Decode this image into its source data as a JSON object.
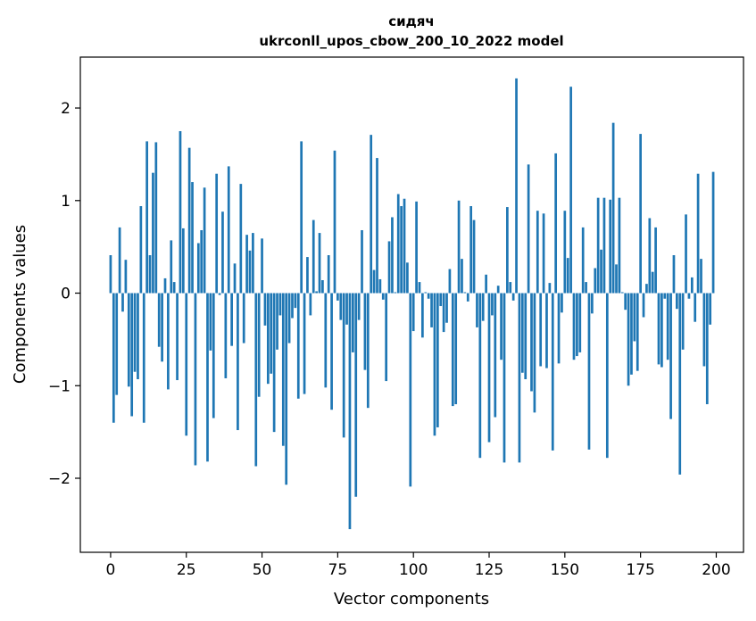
{
  "chart_data": {
    "type": "bar",
    "title_line1": "сидяч",
    "title_line2": "ukrconll_upos_cbow_200_10_2022 model",
    "xlabel": "Vector components",
    "ylabel": "Components values",
    "xlim": [
      -10,
      209
    ],
    "ylim": [
      -2.8,
      2.55
    ],
    "xticks": [
      0,
      25,
      50,
      75,
      100,
      125,
      150,
      175,
      200
    ],
    "yticks": [
      -2,
      -1,
      0,
      1,
      2
    ],
    "ytick_labels": [
      "−2",
      "−1",
      "0",
      "1",
      "2"
    ],
    "grid": false,
    "color": "#1f77b4",
    "x_start": 0,
    "values": [
      0.41,
      -1.4,
      -1.1,
      0.71,
      -0.2,
      0.36,
      -1.01,
      -1.33,
      -0.85,
      -0.93,
      0.94,
      -1.4,
      1.64,
      0.41,
      1.3,
      1.63,
      -0.58,
      -0.74,
      0.16,
      -1.04,
      0.57,
      0.12,
      -0.94,
      1.75,
      0.7,
      -1.54,
      1.57,
      1.2,
      -1.86,
      0.54,
      0.68,
      1.14,
      -1.82,
      -0.62,
      -1.35,
      1.29,
      -0.02,
      0.88,
      -0.92,
      1.37,
      -0.57,
      0.32,
      -1.48,
      1.18,
      -0.54,
      0.63,
      0.46,
      0.65,
      -1.87,
      -1.12,
      0.59,
      -0.35,
      -0.98,
      -0.87,
      -1.5,
      -0.61,
      -0.24,
      -1.65,
      -2.07,
      -0.54,
      -0.27,
      -0.16,
      -1.14,
      1.64,
      -1.09,
      0.39,
      -0.24,
      0.79,
      0.02,
      0.65,
      0.14,
      -1.02,
      0.41,
      -1.26,
      1.54,
      -0.08,
      -0.29,
      -1.56,
      -0.34,
      -2.55,
      -0.64,
      -2.2,
      -0.29,
      0.68,
      -0.83,
      -1.24,
      1.71,
      0.25,
      1.46,
      0.15,
      -0.07,
      -0.95,
      0.56,
      0.82,
      0.01,
      1.07,
      0.94,
      1.02,
      0.33,
      -2.09,
      -0.41,
      0.99,
      0.12,
      -0.48,
      0.01,
      -0.06,
      -0.37,
      -1.54,
      -1.45,
      -0.14,
      -0.42,
      -0.32,
      0.26,
      -1.22,
      -1.2,
      1.0,
      0.37,
      0.01,
      -0.09,
      0.94,
      0.79,
      -0.37,
      -1.78,
      -0.3,
      0.2,
      -1.61,
      -0.24,
      -1.34,
      0.08,
      -0.72,
      -1.83,
      0.93,
      0.12,
      -0.08,
      2.32,
      -1.83,
      -0.86,
      -0.93,
      1.39,
      -1.06,
      -1.29,
      0.89,
      -0.79,
      0.86,
      -0.81,
      0.11,
      -1.7,
      1.51,
      -0.76,
      -0.21,
      0.89,
      0.38,
      2.23,
      -0.72,
      -0.68,
      -0.64,
      0.71,
      0.12,
      -1.69,
      -0.22,
      0.27,
      1.03,
      0.47,
      1.03,
      -1.78,
      1.01,
      1.84,
      0.31,
      1.03,
      0.01,
      -0.18,
      -1.0,
      -0.88,
      -0.52,
      -0.84,
      1.72,
      -0.26,
      0.1,
      0.81,
      0.23,
      0.71,
      -0.77,
      -0.8,
      -0.06,
      -0.72,
      -1.36,
      0.41,
      -0.17,
      -1.96,
      -0.61,
      0.85,
      -0.06,
      0.17,
      -0.31,
      1.29,
      0.37,
      -0.79,
      -1.2,
      -0.34,
      1.31
    ]
  }
}
